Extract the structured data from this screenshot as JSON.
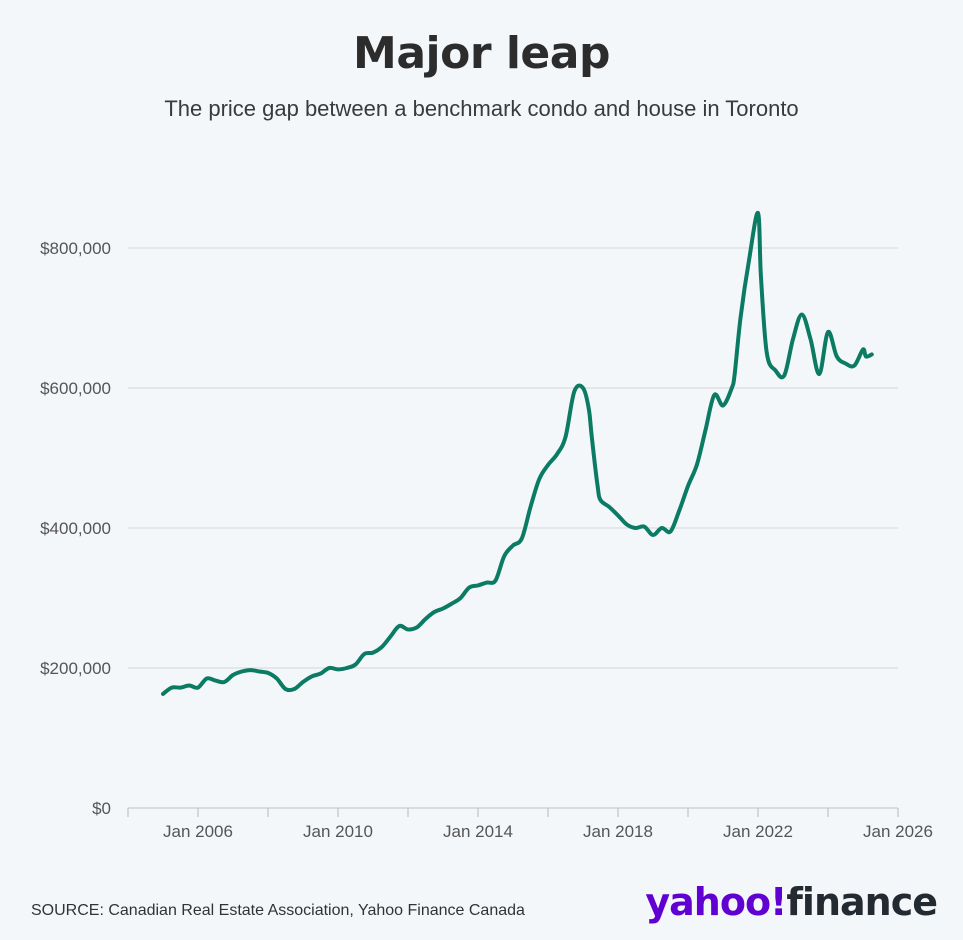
{
  "header": {
    "title": "Major leap",
    "subtitle": "The price gap between a benchmark condo and house in Toronto"
  },
  "footer": {
    "source": "SOURCE: Canadian Real Estate Association, Yahoo Finance Canada",
    "logo_part1": "yahoo!",
    "logo_part2": "finance"
  },
  "colors": {
    "line": "#0b7b63",
    "grid": "#d9dde1",
    "background": "#f4f7fa",
    "brand": "#6001d2"
  },
  "chart_data": {
    "type": "line",
    "title": "Major leap",
    "subtitle": "The price gap between a benchmark condo and house in Toronto",
    "xlabel": "",
    "ylabel": "",
    "ylim": [
      0,
      800000
    ],
    "xlim": [
      "2004-01",
      "2026-01"
    ],
    "yticks": [
      0,
      200000,
      400000,
      600000,
      800000
    ],
    "ytick_labels": [
      "$0",
      "$200,000",
      "$400,000",
      "$600,000",
      "$800,000"
    ],
    "xtick_labels": [
      "Jan 2006",
      "Jan 2010",
      "Jan 2014",
      "Jan 2018",
      "Jan 2022",
      "Jan 2026"
    ],
    "xtick_dates": [
      "2006-01",
      "2010-01",
      "2014-01",
      "2018-01",
      "2022-01",
      "2026-01"
    ],
    "grid": true,
    "series": [
      {
        "x": [
          "2005-01",
          "2005-04",
          "2005-07",
          "2005-10",
          "2006-01",
          "2006-04",
          "2006-07",
          "2006-10",
          "2007-01",
          "2007-04",
          "2007-07",
          "2007-10",
          "2008-01",
          "2008-04",
          "2008-07",
          "2008-10",
          "2009-01",
          "2009-04",
          "2009-07",
          "2009-10",
          "2010-01",
          "2010-04",
          "2010-07",
          "2010-10",
          "2011-01",
          "2011-04",
          "2011-07",
          "2011-10",
          "2012-01",
          "2012-04",
          "2012-07",
          "2012-10",
          "2013-01",
          "2013-04",
          "2013-07",
          "2013-10",
          "2014-01",
          "2014-04",
          "2014-07",
          "2014-10",
          "2015-01",
          "2015-04",
          "2015-07",
          "2015-10",
          "2016-01",
          "2016-04",
          "2016-07",
          "2016-10",
          "2017-01",
          "2017-03",
          "2017-04",
          "2017-06",
          "2017-07",
          "2017-10",
          "2018-01",
          "2018-04",
          "2018-07",
          "2018-10",
          "2019-01",
          "2019-04",
          "2019-07",
          "2019-10",
          "2020-01",
          "2020-04",
          "2020-07",
          "2020-10",
          "2021-01",
          "2021-04",
          "2021-05",
          "2021-07",
          "2021-10",
          "2022-01",
          "2022-02",
          "2022-04",
          "2022-07",
          "2022-10",
          "2023-01",
          "2023-04",
          "2023-07",
          "2023-10",
          "2024-01",
          "2024-04",
          "2024-07",
          "2024-10",
          "2025-01",
          "2025-02",
          "2025-04"
        ],
        "values": [
          163000,
          172000,
          172000,
          175000,
          172000,
          185000,
          182000,
          180000,
          190000,
          195000,
          197000,
          195000,
          193000,
          185000,
          170000,
          170000,
          180000,
          188000,
          192000,
          200000,
          198000,
          200000,
          205000,
          220000,
          222000,
          230000,
          245000,
          260000,
          255000,
          258000,
          270000,
          280000,
          285000,
          292000,
          300000,
          315000,
          318000,
          322000,
          325000,
          360000,
          375000,
          385000,
          430000,
          470000,
          490000,
          505000,
          530000,
          595000,
          600000,
          570000,
          530000,
          460000,
          440000,
          430000,
          418000,
          405000,
          400000,
          402000,
          390000,
          400000,
          395000,
          425000,
          460000,
          490000,
          540000,
          590000,
          575000,
          600000,
          620000,
          700000,
          785000,
          850000,
          760000,
          650000,
          625000,
          618000,
          670000,
          705000,
          670000,
          620000,
          680000,
          645000,
          635000,
          632000,
          655000,
          645000,
          648000
        ]
      }
    ]
  }
}
